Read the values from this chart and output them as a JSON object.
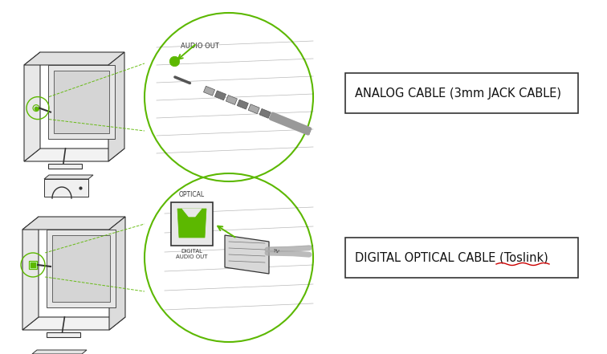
{
  "title1": "ANALOG CABLE (3mm JACK CABLE)",
  "title2": "DIGITAL OPTICAL CABLE (Toslink)",
  "label_audio_out": "AUDIO OUT",
  "label_optical": "OPTICAL",
  "label_digital": "DIGITAL\nAUDIO OUT",
  "green": "#5cb800",
  "gray": "#888888",
  "dark": "#333333",
  "light_gray": "#f2f2f2",
  "mid_gray": "#cccccc",
  "white": "#ffffff",
  "red": "#cc0000",
  "bg": "#ffffff"
}
